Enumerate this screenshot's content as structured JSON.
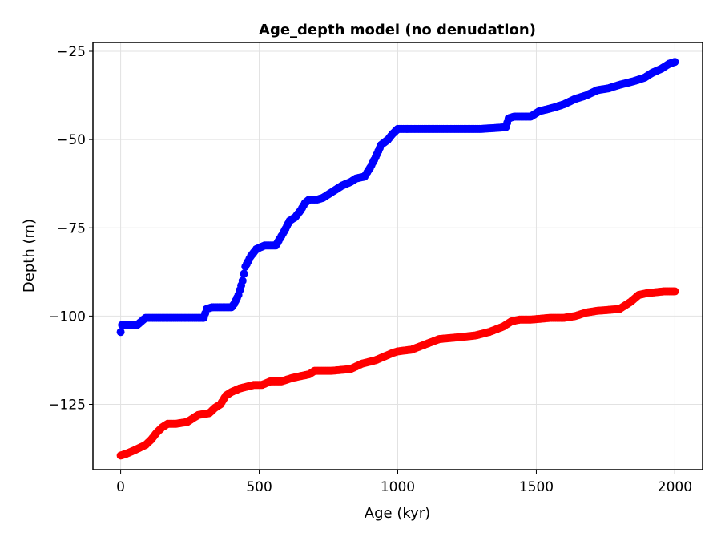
{
  "chart_data": {
    "type": "scatter",
    "title": "Age_depth model (no denudation)",
    "xlabel": "Age (kyr)",
    "ylabel": "Depth (m)",
    "xlim": [
      -100,
      2100
    ],
    "ylim": [
      -143.5,
      -22.5
    ],
    "xticks": [
      0,
      500,
      1000,
      1500,
      2000
    ],
    "yticks": [
      -125,
      -100,
      -75,
      -50,
      -25
    ],
    "grid": true,
    "series": [
      {
        "color": "#0000ff",
        "step": 5,
        "points": [
          [
            0,
            -104.5
          ],
          [
            2,
            -103
          ],
          [
            5,
            -102.5
          ],
          [
            60,
            -102.5
          ],
          [
            75,
            -101.5
          ],
          [
            90,
            -100.5
          ],
          [
            150,
            -100.5
          ],
          [
            250,
            -100.5
          ],
          [
            300,
            -100.5
          ],
          [
            310,
            -98
          ],
          [
            330,
            -97.5
          ],
          [
            400,
            -97.5
          ],
          [
            410,
            -96.5
          ],
          [
            425,
            -94
          ],
          [
            440,
            -90
          ],
          [
            450,
            -86
          ],
          [
            470,
            -83
          ],
          [
            490,
            -81
          ],
          [
            520,
            -80
          ],
          [
            560,
            -80
          ],
          [
            575,
            -78
          ],
          [
            590,
            -76
          ],
          [
            610,
            -73
          ],
          [
            630,
            -72
          ],
          [
            650,
            -70
          ],
          [
            665,
            -68
          ],
          [
            680,
            -67
          ],
          [
            710,
            -67
          ],
          [
            730,
            -66.5
          ],
          [
            760,
            -65
          ],
          [
            780,
            -64
          ],
          [
            800,
            -63
          ],
          [
            830,
            -62
          ],
          [
            850,
            -61
          ],
          [
            880,
            -60.5
          ],
          [
            900,
            -58
          ],
          [
            920,
            -55
          ],
          [
            940,
            -51.5
          ],
          [
            965,
            -50
          ],
          [
            980,
            -48.5
          ],
          [
            1000,
            -47
          ],
          [
            1100,
            -47
          ],
          [
            1200,
            -47
          ],
          [
            1300,
            -47
          ],
          [
            1390,
            -46.5
          ],
          [
            1400,
            -44
          ],
          [
            1420,
            -43.5
          ],
          [
            1480,
            -43.5
          ],
          [
            1510,
            -42
          ],
          [
            1560,
            -41
          ],
          [
            1600,
            -40
          ],
          [
            1640,
            -38.5
          ],
          [
            1680,
            -37.5
          ],
          [
            1720,
            -36
          ],
          [
            1760,
            -35.5
          ],
          [
            1800,
            -34.5
          ],
          [
            1850,
            -33.5
          ],
          [
            1890,
            -32.5
          ],
          [
            1920,
            -31
          ],
          [
            1950,
            -30
          ],
          [
            1980,
            -28.5
          ],
          [
            2000,
            -28
          ]
        ]
      },
      {
        "color": "#ff0000",
        "step": 5,
        "points": [
          [
            0,
            -139.5
          ],
          [
            20,
            -139
          ],
          [
            50,
            -138
          ],
          [
            90,
            -136.5
          ],
          [
            110,
            -135
          ],
          [
            130,
            -133
          ],
          [
            150,
            -131.5
          ],
          [
            170,
            -130.5
          ],
          [
            200,
            -130.5
          ],
          [
            240,
            -130
          ],
          [
            260,
            -129
          ],
          [
            280,
            -128
          ],
          [
            320,
            -127.5
          ],
          [
            340,
            -126
          ],
          [
            360,
            -125
          ],
          [
            380,
            -122.5
          ],
          [
            400,
            -121.5
          ],
          [
            430,
            -120.5
          ],
          [
            480,
            -119.5
          ],
          [
            510,
            -119.5
          ],
          [
            540,
            -118.5
          ],
          [
            580,
            -118.5
          ],
          [
            620,
            -117.5
          ],
          [
            680,
            -116.5
          ],
          [
            700,
            -115.5
          ],
          [
            760,
            -115.5
          ],
          [
            830,
            -115
          ],
          [
            870,
            -113.5
          ],
          [
            920,
            -112.5
          ],
          [
            950,
            -111.5
          ],
          [
            980,
            -110.5
          ],
          [
            1000,
            -110
          ],
          [
            1050,
            -109.5
          ],
          [
            1100,
            -108
          ],
          [
            1150,
            -106.5
          ],
          [
            1220,
            -106
          ],
          [
            1280,
            -105.5
          ],
          [
            1330,
            -104.5
          ],
          [
            1380,
            -103
          ],
          [
            1410,
            -101.5
          ],
          [
            1440,
            -101
          ],
          [
            1480,
            -101
          ],
          [
            1550,
            -100.5
          ],
          [
            1600,
            -100.5
          ],
          [
            1640,
            -100
          ],
          [
            1680,
            -99
          ],
          [
            1720,
            -98.5
          ],
          [
            1800,
            -98
          ],
          [
            1840,
            -96
          ],
          [
            1870,
            -94
          ],
          [
            1900,
            -93.5
          ],
          [
            1960,
            -93
          ],
          [
            2000,
            -93
          ]
        ]
      }
    ]
  }
}
